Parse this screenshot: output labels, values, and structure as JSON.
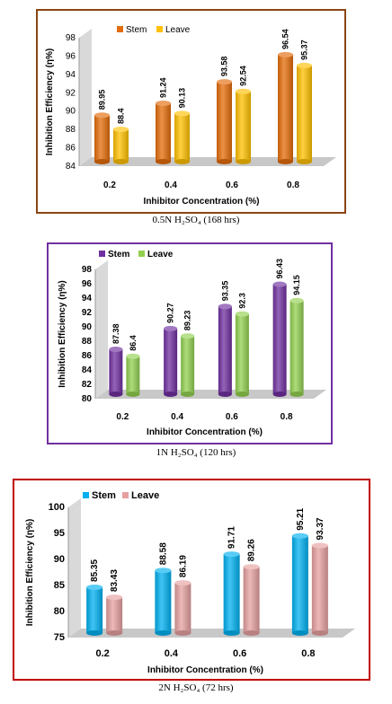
{
  "chart_data": [
    {
      "type": "bar",
      "categories": [
        "0.2",
        "0.4",
        "0.6",
        "0.8"
      ],
      "series": [
        {
          "name": "Stem",
          "values": [
            89.95,
            91.24,
            93.58,
            96.54
          ],
          "color": "#e46c0a"
        },
        {
          "name": "Leave",
          "values": [
            88.4,
            90.13,
            92.54,
            95.37
          ],
          "color": "#ffc000"
        }
      ],
      "ylabel": "Inhibition Efficiency (η%)",
      "xlabel": "Inhibitor Concentration (%)",
      "ylim": [
        84,
        98
      ],
      "yticks": [
        84,
        86,
        88,
        90,
        92,
        94,
        96,
        98
      ],
      "border_color": "#8b4513",
      "caption": "0.5N H₂SO₄ (168 hrs)",
      "legend": "top-left",
      "grid": false
    },
    {
      "type": "bar",
      "categories": [
        "0.2",
        "0.4",
        "0.6",
        "0.8"
      ],
      "series": [
        {
          "name": "Stem",
          "values": [
            87.38,
            90.27,
            93.35,
            96.43
          ],
          "color": "#7030a0"
        },
        {
          "name": "Leave",
          "values": [
            86.4,
            89.23,
            92.3,
            94.15
          ],
          "color": "#92d050"
        }
      ],
      "ylabel": "Inhibition Efficiency (η%)",
      "xlabel": "Inhibitor Concentration (%)",
      "ylim": [
        80,
        98
      ],
      "yticks": [
        80,
        82,
        84,
        86,
        88,
        90,
        92,
        94,
        96,
        98
      ],
      "border_color": "#7030a0",
      "caption": "1N H₂SO₄ (120 hrs)",
      "legend": "top-left",
      "grid": false
    },
    {
      "type": "bar",
      "categories": [
        "0.2",
        "0.4",
        "0.6",
        "0.8"
      ],
      "series": [
        {
          "name": "Stem",
          "values": [
            85.35,
            88.58,
            91.71,
            95.21
          ],
          "color": "#00b0f0"
        },
        {
          "name": "Leave",
          "values": [
            83.43,
            86.19,
            89.26,
            93.37
          ],
          "color": "#e6a0a0"
        }
      ],
      "ylabel": "Inhibition Efficiency (η%)",
      "xlabel": "Inhibitor Concentration (%)",
      "ylim": [
        75,
        100
      ],
      "yticks": [
        75,
        80,
        85,
        90,
        95,
        100
      ],
      "border_color": "#c00000",
      "caption": "2N H₂SO₄ (72 hrs)",
      "legend": "top-left",
      "grid": false
    }
  ]
}
